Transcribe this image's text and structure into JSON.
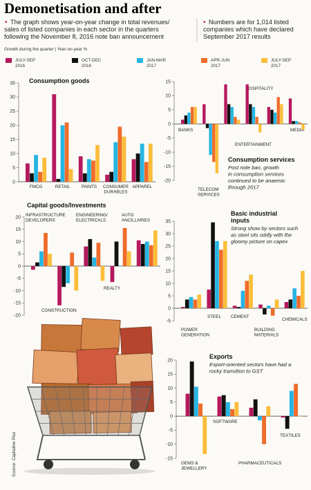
{
  "header": {
    "title": "Demonetisation and after",
    "note_left": [
      "The graph shows year-on-year change in total revenues/",
      "sales of listed companies in each sector in the quarters",
      "following the November 8, 2016 note ban announcement"
    ],
    "note_right": [
      "Numbers are for 1,014 listed",
      "companies which have declared",
      "September 2017 results"
    ],
    "growth_caption": "Growth during the quarter | Year-on-year %"
  },
  "legend": [
    {
      "label": [
        "JULY-SEP",
        "2016"
      ],
      "color": "#b5195e"
    },
    {
      "label": [
        "OCT-DEC",
        "2016"
      ],
      "color": "#111111"
    },
    {
      "label": [
        "JAN-MAR",
        "2017"
      ],
      "color": "#26b5e3"
    },
    {
      "label": [
        "APR-JUN",
        "2017"
      ],
      "color": "#ef6c2a"
    },
    {
      "label": [
        "JULY-SEP",
        "2017"
      ],
      "color": "#fbbd3a"
    }
  ],
  "source": "Source: Capitaline Plus",
  "chart_data": [
    {
      "type": "bar",
      "title": "Consumption goods",
      "ylim": [
        0,
        35
      ],
      "yticks": [
        0,
        5,
        10,
        15,
        20,
        25,
        30,
        35
      ],
      "groups": [
        {
          "label": [
            "FMCG"
          ],
          "values": [
            6.5,
            3,
            9.5,
            3.5,
            8.5
          ]
        },
        {
          "label": [
            "RETAIL"
          ],
          "values": [
            31,
            1,
            20,
            21,
            4.5
          ]
        },
        {
          "label": [
            "PAINTS"
          ],
          "values": [
            9,
            3,
            8,
            7.5,
            13
          ]
        },
        {
          "label": [
            "CONSUMER",
            "DURABLES"
          ],
          "values": [
            2.5,
            3.5,
            14,
            19.5,
            16
          ]
        },
        {
          "label": [
            "APPAREL"
          ],
          "values": [
            8,
            10,
            13.5,
            7,
            13.5
          ]
        }
      ]
    },
    {
      "type": "bar",
      "title": "",
      "ylim": [
        -20,
        15
      ],
      "yticks": [
        -20,
        -15,
        -10,
        -5,
        0,
        5,
        10,
        15
      ],
      "groups": [
        {
          "label": [
            "BANKS"
          ],
          "values": [
            1.5,
            3,
            4,
            6,
            6
          ]
        },
        {
          "label": [
            "TELECOM",
            "SERVICES"
          ],
          "values": [
            7,
            -1.5,
            -11,
            -13.5,
            -17.5
          ]
        },
        {
          "label": [
            "HOSPITALITY"
          ],
          "values": [
            14,
            7,
            6,
            2.5,
            1.5
          ]
        },
        {
          "label": [
            "ENTERTAINMENT"
          ],
          "values": [
            14,
            7,
            6,
            2.5,
            -3
          ]
        },
        {
          "label": [
            "MEDIA"
          ],
          "values": [
            6,
            5,
            4,
            9.5,
            7
          ]
        },
        {
          "label": [
            ""
          ],
          "values": [
            9,
            1,
            1,
            0.5,
            -2
          ]
        }
      ],
      "annotation": {
        "title": "Consumption services",
        "text": [
          "Post note ban, growth",
          "in consumption services",
          "continued to be anaemic",
          "through 2017"
        ]
      }
    },
    {
      "type": "bar",
      "title": "Capital goods/Investments",
      "ylim": [
        -20,
        20
      ],
      "yticks": [
        -20,
        -15,
        -10,
        -5,
        0,
        5,
        10,
        15,
        20
      ],
      "groups": [
        {
          "label": [
            "INFRASTRUCTURE",
            "DEVELOPERS"
          ],
          "values": [
            -1.5,
            1.5,
            6,
            13.5,
            5
          ]
        },
        {
          "label": [
            "CONSTRUCTION"
          ],
          "values": [
            -16,
            -8.5,
            -7,
            5.5,
            -10
          ]
        },
        {
          "label": [
            "ENGINEERING/",
            "ELECTRICALS"
          ],
          "values": [
            8,
            11,
            3.5,
            9.5,
            -6
          ]
        },
        {
          "label": [
            "REALTY"
          ],
          "values": [
            -6.5,
            10,
            0,
            15.5,
            6
          ]
        },
        {
          "label": [
            "AUTO",
            "ANCILLARIES"
          ],
          "values": [
            10.5,
            9,
            10,
            8.5,
            14.5
          ]
        }
      ]
    },
    {
      "type": "bar",
      "title": "Basic industrial inputs",
      "ylim": [
        -5,
        35
      ],
      "yticks": [
        -5,
        0,
        5,
        10,
        15,
        20,
        25,
        30,
        35
      ],
      "groups": [
        {
          "label": [
            "POWER",
            "GENERATION"
          ],
          "values": [
            0.5,
            3.5,
            4.5,
            3.5,
            5.5
          ]
        },
        {
          "label": [
            "STEEL"
          ],
          "values": [
            7.5,
            34.5,
            27,
            23.5,
            27
          ]
        },
        {
          "label": [
            "CEMENT"
          ],
          "values": [
            1,
            0.5,
            7,
            11,
            13.5
          ]
        },
        {
          "label": [
            "BUILDING",
            "MATERIALS"
          ],
          "values": [
            1.5,
            -2.5,
            1,
            -3,
            3.5
          ]
        },
        {
          "label": [
            "CHEMICALS"
          ],
          "values": [
            2.5,
            3.5,
            8,
            5,
            15
          ]
        }
      ],
      "annotation": {
        "title": "Basic industrial",
        "title2": "inputs",
        "text": [
          "Strong show by sectors such",
          "as steel sits oddly with the",
          "gloomy picture on capex"
        ]
      }
    },
    {
      "type": "bar",
      "title": "Exports",
      "ylim": [
        -15,
        20
      ],
      "yticks": [
        -15,
        -10,
        -5,
        0,
        5,
        10,
        15,
        20
      ],
      "groups": [
        {
          "label": [
            "GEMS &",
            "JEWELLERY"
          ],
          "values": [
            8,
            19.5,
            10.5,
            4.5,
            -13.5
          ]
        },
        {
          "label": [
            "SOFTWARE"
          ],
          "values": [
            7,
            7.5,
            5,
            2.5,
            5
          ]
        },
        {
          "label": [
            "PHARMACEUTICALS"
          ],
          "values": [
            3,
            6,
            -1.5,
            -10,
            3.5
          ]
        },
        {
          "label": [
            "TEXTILES"
          ],
          "values": [
            -0.5,
            -4.5,
            9,
            11.5,
            0
          ]
        }
      ],
      "annotation": {
        "title": "Exports",
        "text": [
          "Export-oriented sectors have had a",
          "rocky transition to GST"
        ]
      }
    }
  ]
}
